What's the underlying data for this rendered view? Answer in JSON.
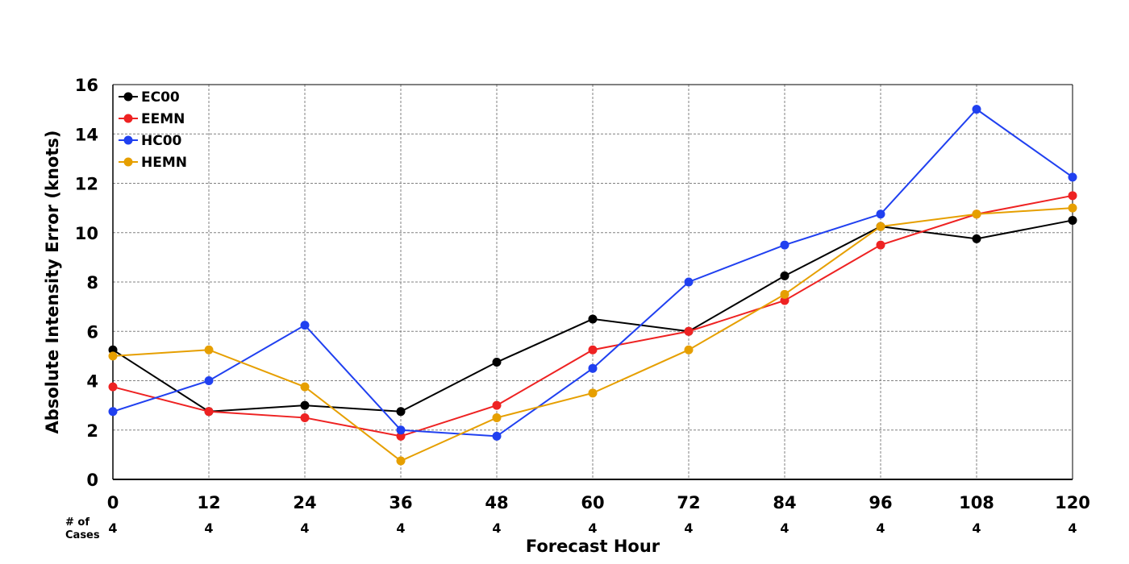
{
  "chart_data": {
    "type": "line",
    "xlabel": "Forecast Hour",
    "ylabel": "Absolute Intensity Error (knots)",
    "x": [
      0,
      12,
      24,
      36,
      48,
      60,
      72,
      84,
      96,
      108,
      120
    ],
    "xlim": [
      0,
      120
    ],
    "ylim": [
      0,
      16
    ],
    "yticks": [
      0,
      2,
      4,
      6,
      8,
      10,
      12,
      14,
      16
    ],
    "grid": true,
    "legend_position": "top-left",
    "cases_label": "# of Cases",
    "cases": [
      4,
      4,
      4,
      4,
      4,
      4,
      4,
      4,
      4,
      4,
      4
    ],
    "series": [
      {
        "name": "EC00",
        "color": "#000000",
        "values": [
          5.25,
          2.75,
          3.0,
          2.75,
          4.75,
          6.5,
          6.0,
          8.25,
          10.25,
          9.75,
          10.5
        ]
      },
      {
        "name": "EEMN",
        "color": "#ee2222",
        "values": [
          3.75,
          2.75,
          2.5,
          1.75,
          3.0,
          5.25,
          6.0,
          7.25,
          9.5,
          10.75,
          11.5
        ]
      },
      {
        "name": "HC00",
        "color": "#2040f0",
        "values": [
          2.75,
          4.0,
          6.25,
          2.0,
          1.75,
          4.5,
          8.0,
          9.5,
          10.75,
          15.0,
          12.25
        ]
      },
      {
        "name": "HEMN",
        "color": "#e69f00",
        "values": [
          5.0,
          5.25,
          3.75,
          0.75,
          2.5,
          3.5,
          5.25,
          7.5,
          10.25,
          10.75,
          11.0
        ]
      }
    ]
  }
}
